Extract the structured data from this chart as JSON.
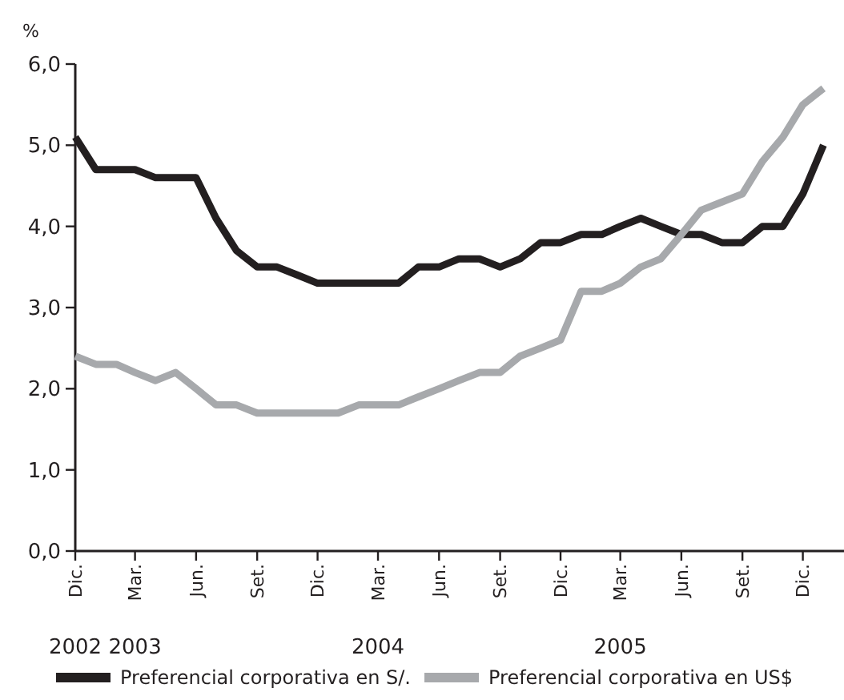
{
  "chart_data": {
    "type": "line",
    "ylabel": "%",
    "x": [
      "2002-12",
      "2003-01",
      "2003-02",
      "2003-03",
      "2003-04",
      "2003-05",
      "2003-06",
      "2003-07",
      "2003-08",
      "2003-09",
      "2003-10",
      "2003-11",
      "2003-12",
      "2004-01",
      "2004-02",
      "2004-03",
      "2004-04",
      "2004-05",
      "2004-06",
      "2004-07",
      "2004-08",
      "2004-09",
      "2004-10",
      "2004-11",
      "2004-12",
      "2005-01",
      "2005-02",
      "2005-03",
      "2005-04",
      "2005-05",
      "2005-06",
      "2005-07",
      "2005-08",
      "2005-09",
      "2005-10",
      "2005-11",
      "2005-12",
      "2006-01"
    ],
    "xlim": [
      "2002-12",
      "2006-02"
    ],
    "x2lim": [
      "2002-12",
      "2006-02"
    ],
    "x2ticks": [
      {
        "value": "2002-12",
        "label": "2002"
      },
      {
        "value": "2003-03",
        "label": "2003"
      },
      {
        "value": "2004-03",
        "label": "2004"
      },
      {
        "value": "2005-03",
        "label": "2005"
      }
    ],
    "xticks": [
      {
        "value": "2002-12",
        "label": "Dic."
      },
      {
        "value": "2003-03",
        "label": "Mar."
      },
      {
        "value": "2003-06",
        "label": "Jun."
      },
      {
        "value": "2003-09",
        "label": "Set."
      },
      {
        "value": "2003-12",
        "label": "Dic."
      },
      {
        "value": "2004-03",
        "label": "Mar."
      },
      {
        "value": "2004-06",
        "label": "Jun."
      },
      {
        "value": "2004-09",
        "label": "Set."
      },
      {
        "value": "2004-12",
        "label": "Dic."
      },
      {
        "value": "2005-03",
        "label": "Mar."
      },
      {
        "value": "2005-06",
        "label": "Jun."
      },
      {
        "value": "2005-09",
        "label": "Set."
      },
      {
        "value": "2005-12",
        "label": "Dic."
      }
    ],
    "ylim": [
      0,
      6
    ],
    "yticks": [
      {
        "value": 0,
        "label": "0,0"
      },
      {
        "value": 1,
        "label": "1,0"
      },
      {
        "value": 2,
        "label": "2,0"
      },
      {
        "value": 3,
        "label": "3,0"
      },
      {
        "value": 4,
        "label": "4,0"
      },
      {
        "value": 5,
        "label": "5,0"
      },
      {
        "value": 6,
        "label": "6,0"
      }
    ],
    "grid": false,
    "legend": "bottom",
    "marker": "none",
    "line_style": "solid",
    "series": [
      {
        "name": "Preferencial corporativa en S/.",
        "color": "#231f20",
        "values": [
          5.1,
          4.7,
          4.7,
          4.7,
          4.6,
          4.6,
          4.6,
          4.1,
          3.7,
          3.5,
          3.5,
          3.4,
          3.3,
          3.3,
          3.3,
          3.3,
          3.3,
          3.5,
          3.5,
          3.6,
          3.6,
          3.5,
          3.6,
          3.8,
          3.8,
          3.9,
          3.9,
          4.0,
          4.1,
          4.0,
          3.9,
          3.9,
          3.8,
          3.8,
          4.0,
          4.0,
          4.4,
          5.0
        ]
      },
      {
        "name": "Preferencial corporativa en US$",
        "color": "#a7a9ac",
        "values": [
          2.4,
          2.3,
          2.3,
          2.2,
          2.1,
          2.2,
          2.0,
          1.8,
          1.8,
          1.7,
          1.7,
          1.7,
          1.7,
          1.7,
          1.8,
          1.8,
          1.8,
          1.9,
          2.0,
          2.1,
          2.2,
          2.2,
          2.4,
          2.5,
          2.6,
          3.2,
          3.2,
          3.3,
          3.5,
          3.6,
          3.9,
          4.2,
          4.3,
          4.4,
          4.8,
          5.1,
          5.5,
          5.7
        ]
      }
    ]
  }
}
